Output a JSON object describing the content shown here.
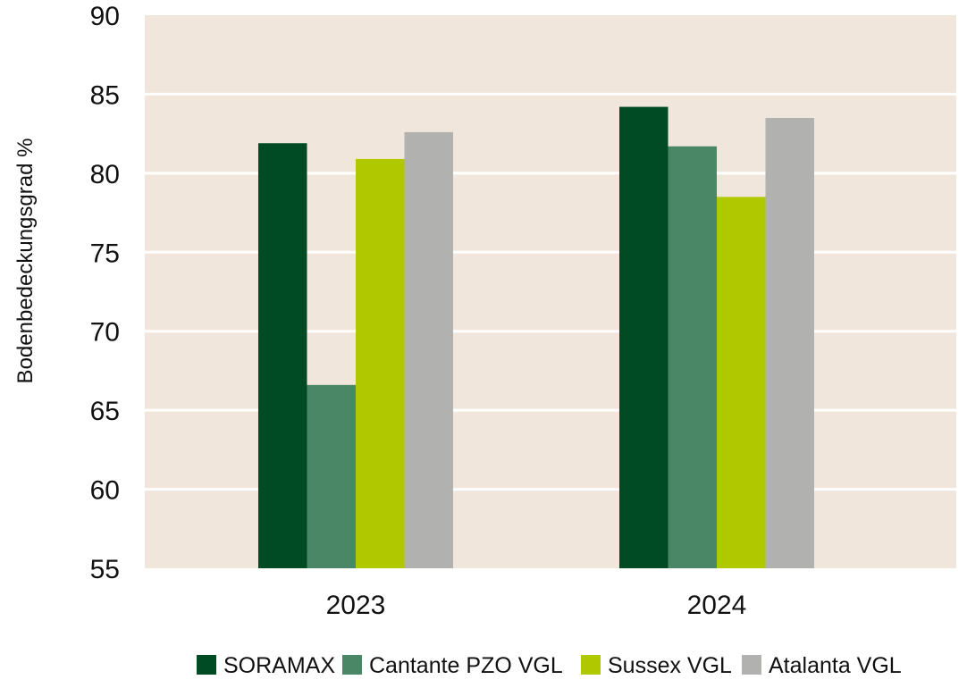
{
  "chart_data": {
    "type": "bar",
    "title": "",
    "xlabel": "",
    "ylabel": "Bodenbedeckungsgrad %",
    "ylim": [
      55,
      90
    ],
    "yticks": [
      55,
      60,
      65,
      70,
      75,
      80,
      85,
      90
    ],
    "grid": true,
    "legend_position": "bottom",
    "categories": [
      "2023",
      "2024"
    ],
    "series": [
      {
        "name": "SORAMAX",
        "color": "#004b23",
        "values": [
          81.9,
          84.2
        ]
      },
      {
        "name": "Cantante PZO VGL",
        "color": "#4a8766",
        "values": [
          66.6,
          81.7
        ]
      },
      {
        "name": "Sussex VGL",
        "color": "#b0c800",
        "values": [
          80.9,
          78.5
        ]
      },
      {
        "name": "Atalanta VGL",
        "color": "#b1b1b0",
        "values": [
          82.6,
          83.5
        ]
      }
    ],
    "plot_background": "#f1e6dc",
    "grid_color": "#ffffff"
  }
}
